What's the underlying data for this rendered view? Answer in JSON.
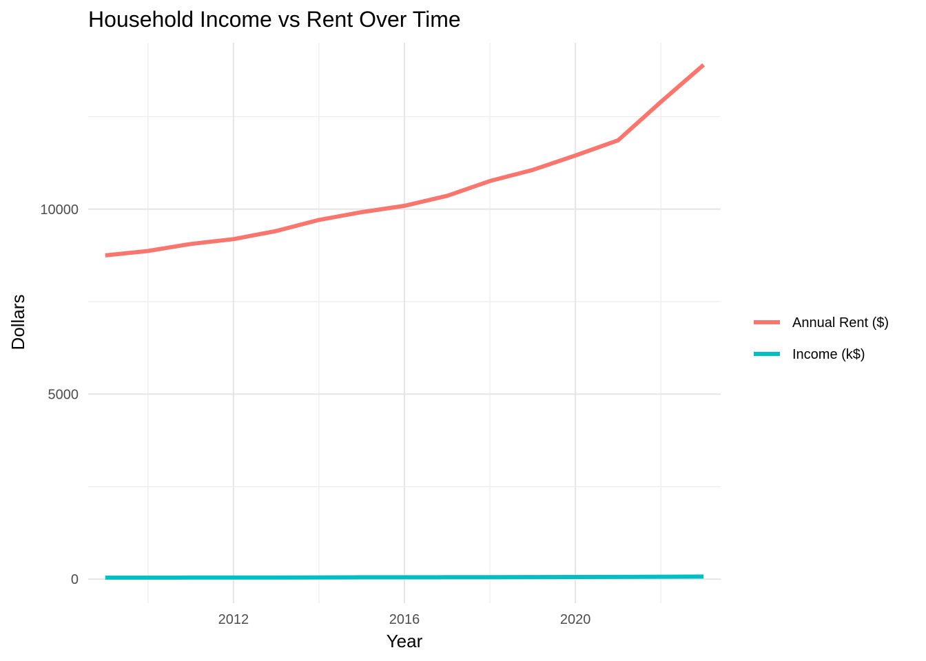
{
  "chart_data": {
    "type": "line",
    "title": "Household Income vs Rent Over Time",
    "xlabel": "Year",
    "ylabel": "Dollars",
    "xlim": [
      2008.6,
      2023.4
    ],
    "ylim": [
      -650,
      14500
    ],
    "x_ticks": [
      2012,
      2016,
      2020
    ],
    "x_minor_ticks": [
      2010,
      2014,
      2018,
      2022
    ],
    "y_ticks": [
      0,
      5000,
      10000
    ],
    "y_minor_ticks": [
      2500,
      7500,
      12500
    ],
    "grid": true,
    "legend_position": "right",
    "x": [
      2009,
      2010,
      2011,
      2012,
      2013,
      2014,
      2015,
      2016,
      2017,
      2018,
      2019,
      2020,
      2021,
      2022,
      2023
    ],
    "series": [
      {
        "name": "Annual Rent ($)",
        "color": "#F8766D",
        "values": [
          8750,
          8870,
          9060,
          9190,
          9410,
          9710,
          9920,
          10090,
          10360,
          10760,
          11060,
          11450,
          11860,
          12900,
          13900
        ]
      },
      {
        "name": "Income (k$)",
        "color": "#00BFC4",
        "values": [
          40,
          41,
          42,
          44,
          45,
          47,
          49,
          50,
          52,
          54,
          56,
          58,
          60,
          64,
          68
        ]
      }
    ]
  }
}
